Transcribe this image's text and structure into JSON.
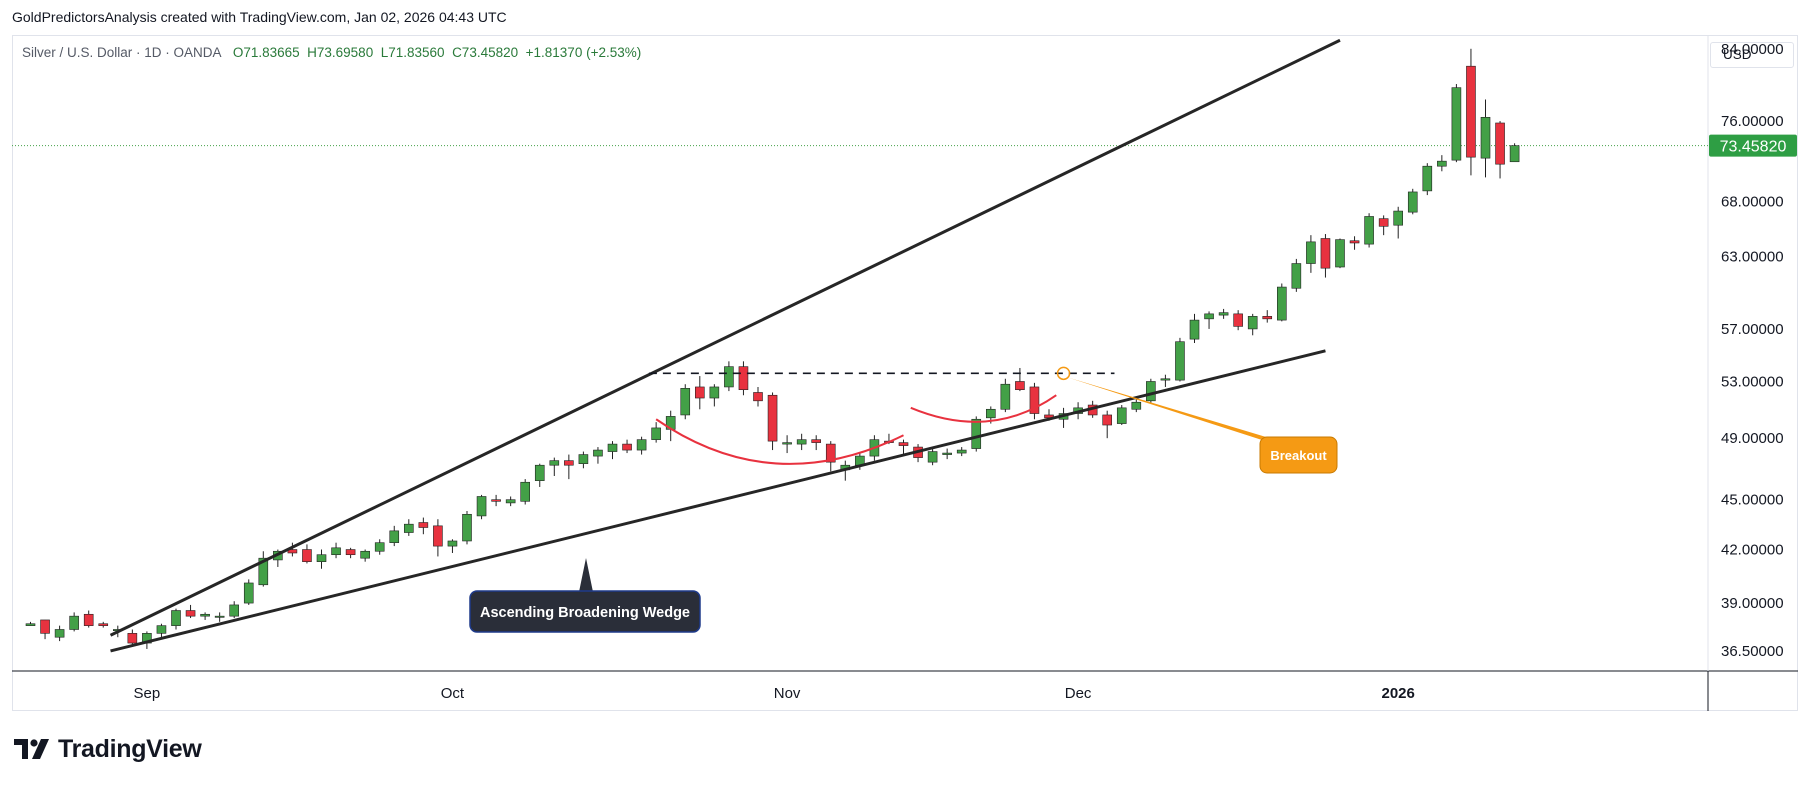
{
  "header": {
    "credit": "GoldPredictorsAnalysis created with TradingView.com, Jan 02, 2026 04:43 UTC"
  },
  "legend": {
    "symbol": "Silver / U.S. Dollar · 1D · OANDA",
    "open": "O71.83665",
    "high": "H73.69580",
    "low": "L71.83560",
    "close": "C73.45820",
    "change": "+1.81370 (+2.53%)"
  },
  "currency": "USD",
  "price_label": "73.45820",
  "brand": {
    "name": "TradingView"
  },
  "colors": {
    "up": "#43a047",
    "down": "#e8323f",
    "trendline": "#262626",
    "arc": "#e8323f",
    "breakout": "#f59a14",
    "pattern_label_bg": "#2a2e39",
    "price_tag": "#2e9e44",
    "price_line": "#43a047"
  },
  "chart_data": {
    "type": "candlestick",
    "symbol": "Silver / U.S. Dollar",
    "interval": "1D",
    "ylim": [
      35.5,
      85.5
    ],
    "y_scale": "log",
    "y_ticks": [
      "84.00000",
      "76.00000",
      "68.00000",
      "63.00000",
      "57.00000",
      "53.00000",
      "49.00000",
      "45.00000",
      "42.00000",
      "39.00000",
      "36.50000"
    ],
    "x_ticks": [
      {
        "label": "Sep",
        "index": 8,
        "bold": false
      },
      {
        "label": "Oct",
        "index": 29,
        "bold": false
      },
      {
        "label": "Nov",
        "index": 52,
        "bold": false
      },
      {
        "label": "Dec",
        "index": 72,
        "bold": false
      },
      {
        "label": "2026",
        "index": 94,
        "bold": true
      }
    ],
    "candles": [
      [
        37.8,
        38.0,
        37.8,
        37.9
      ],
      [
        38.1,
        38.1,
        37.1,
        37.4
      ],
      [
        37.2,
        37.8,
        37.0,
        37.6
      ],
      [
        37.6,
        38.5,
        37.5,
        38.3
      ],
      [
        38.4,
        38.6,
        37.7,
        37.8
      ],
      [
        37.9,
        38.0,
        37.7,
        37.8
      ],
      [
        37.6,
        37.8,
        37.2,
        37.6
      ],
      [
        37.4,
        37.6,
        36.7,
        36.9
      ],
      [
        36.9,
        37.5,
        36.6,
        37.4
      ],
      [
        37.4,
        37.9,
        37.2,
        37.8
      ],
      [
        37.8,
        38.7,
        37.6,
        38.6
      ],
      [
        38.6,
        38.9,
        38.2,
        38.3
      ],
      [
        38.3,
        38.5,
        38.1,
        38.4
      ],
      [
        38.3,
        38.5,
        38.0,
        38.3
      ],
      [
        38.3,
        39.1,
        38.2,
        38.9
      ],
      [
        39.0,
        40.3,
        38.9,
        40.1
      ],
      [
        40.0,
        41.9,
        39.9,
        41.5
      ],
      [
        41.4,
        42.0,
        41.0,
        41.9
      ],
      [
        42.0,
        42.4,
        41.6,
        41.8
      ],
      [
        42.0,
        42.3,
        41.2,
        41.3
      ],
      [
        41.3,
        42.0,
        40.9,
        41.7
      ],
      [
        41.7,
        42.4,
        41.5,
        42.1
      ],
      [
        42.0,
        42.1,
        41.5,
        41.7
      ],
      [
        41.5,
        42.0,
        41.3,
        41.9
      ],
      [
        41.9,
        42.6,
        41.7,
        42.4
      ],
      [
        42.4,
        43.4,
        42.2,
        43.1
      ],
      [
        43.0,
        43.8,
        42.8,
        43.5
      ],
      [
        43.6,
        43.9,
        42.9,
        43.3
      ],
      [
        43.4,
        43.8,
        41.6,
        42.2
      ],
      [
        42.2,
        42.6,
        41.8,
        42.5
      ],
      [
        42.5,
        44.3,
        42.3,
        44.1
      ],
      [
        44.0,
        45.3,
        43.8,
        45.2
      ],
      [
        45.0,
        45.3,
        44.6,
        44.9
      ],
      [
        44.8,
        45.2,
        44.6,
        45.0
      ],
      [
        44.9,
        46.3,
        44.7,
        46.1
      ],
      [
        46.2,
        47.3,
        45.8,
        47.2
      ],
      [
        47.2,
        47.7,
        46.5,
        47.5
      ],
      [
        47.5,
        47.9,
        46.3,
        47.2
      ],
      [
        47.3,
        48.1,
        47.0,
        47.9
      ],
      [
        47.8,
        48.4,
        47.3,
        48.2
      ],
      [
        48.1,
        48.8,
        47.6,
        48.6
      ],
      [
        48.6,
        48.9,
        48.0,
        48.2
      ],
      [
        48.2,
        49.1,
        47.9,
        48.9
      ],
      [
        48.9,
        50.1,
        48.7,
        49.7
      ],
      [
        49.6,
        50.9,
        48.8,
        50.5
      ],
      [
        50.6,
        52.8,
        50.3,
        52.5
      ],
      [
        52.6,
        53.4,
        51.0,
        51.8
      ],
      [
        51.8,
        52.8,
        51.2,
        52.6
      ],
      [
        52.6,
        54.5,
        52.3,
        54.1
      ],
      [
        54.1,
        54.5,
        52.0,
        52.4
      ],
      [
        52.2,
        52.6,
        51.2,
        51.6
      ],
      [
        52.0,
        52.2,
        48.2,
        48.8
      ],
      [
        48.6,
        49.2,
        48.0,
        48.7
      ],
      [
        48.6,
        49.3,
        48.2,
        48.9
      ],
      [
        48.9,
        49.2,
        48.2,
        48.7
      ],
      [
        48.6,
        48.8,
        46.8,
        47.4
      ],
      [
        46.9,
        47.5,
        46.2,
        47.2
      ],
      [
        47.2,
        48.0,
        46.9,
        47.8
      ],
      [
        47.8,
        49.2,
        47.5,
        48.9
      ],
      [
        48.8,
        49.3,
        48.6,
        48.7
      ],
      [
        48.7,
        48.9,
        47.9,
        48.5
      ],
      [
        48.4,
        48.6,
        47.4,
        47.7
      ],
      [
        47.4,
        48.3,
        47.2,
        48.1
      ],
      [
        47.9,
        48.3,
        47.6,
        48.0
      ],
      [
        48.0,
        48.4,
        47.8,
        48.2
      ],
      [
        48.3,
        50.5,
        48.1,
        50.3
      ],
      [
        50.4,
        51.2,
        50.0,
        51.0
      ],
      [
        51.0,
        53.2,
        50.8,
        52.8
      ],
      [
        53.0,
        54.0,
        52.3,
        52.4
      ],
      [
        52.6,
        52.9,
        50.3,
        50.7
      ],
      [
        50.6,
        51.0,
        50.2,
        50.4
      ],
      [
        50.3,
        51.1,
        49.7,
        50.7
      ],
      [
        50.7,
        51.5,
        50.3,
        51.1
      ],
      [
        51.3,
        51.6,
        50.4,
        50.6
      ],
      [
        50.6,
        50.9,
        49.0,
        49.9
      ],
      [
        50.0,
        51.3,
        49.9,
        51.1
      ],
      [
        51.0,
        51.8,
        50.8,
        51.5
      ],
      [
        51.6,
        53.2,
        51.4,
        53.0
      ],
      [
        53.1,
        53.5,
        52.6,
        53.2
      ],
      [
        53.1,
        56.3,
        53.0,
        56.0
      ],
      [
        56.2,
        58.2,
        55.9,
        57.7
      ],
      [
        57.8,
        58.4,
        57.0,
        58.2
      ],
      [
        58.1,
        58.6,
        57.8,
        58.3
      ],
      [
        58.2,
        58.5,
        56.9,
        57.2
      ],
      [
        57.0,
        58.2,
        56.5,
        58.0
      ],
      [
        58.0,
        58.5,
        57.5,
        57.8
      ],
      [
        57.7,
        60.7,
        57.6,
        60.4
      ],
      [
        60.3,
        62.8,
        60.0,
        62.4
      ],
      [
        62.4,
        64.9,
        61.6,
        64.3
      ],
      [
        64.6,
        65.0,
        61.2,
        62.0
      ],
      [
        62.1,
        64.6,
        62.0,
        64.5
      ],
      [
        64.4,
        64.8,
        63.6,
        64.2
      ],
      [
        64.1,
        66.9,
        63.8,
        66.6
      ],
      [
        66.4,
        66.7,
        64.9,
        65.7
      ],
      [
        65.8,
        67.5,
        64.6,
        67.1
      ],
      [
        67.0,
        69.2,
        66.8,
        68.9
      ],
      [
        69.0,
        71.7,
        68.6,
        71.4
      ],
      [
        71.4,
        72.5,
        70.9,
        71.9
      ],
      [
        72.0,
        80.0,
        71.8,
        79.6
      ],
      [
        82.0,
        84.0,
        70.5,
        72.3
      ],
      [
        72.2,
        78.3,
        70.3,
        76.4
      ],
      [
        75.8,
        76.0,
        70.2,
        71.6
      ],
      [
        71.84,
        73.7,
        71.84,
        73.46
      ]
    ],
    "annotations": {
      "pattern": "Ascending Broadening Wedge",
      "breakout": "Breakout"
    }
  }
}
